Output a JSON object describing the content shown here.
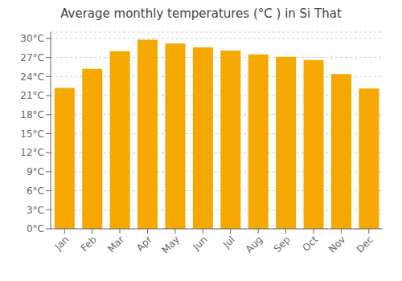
{
  "chart_data": {
    "type": "bar",
    "title": "Average monthly temperatures (°C ) in Si That",
    "categories": [
      "Jan",
      "Feb",
      "Mar",
      "Apr",
      "May",
      "Jun",
      "Jul",
      "Aug",
      "Sep",
      "Oct",
      "Nov",
      "Dec"
    ],
    "values": [
      22.2,
      25.2,
      28.0,
      29.8,
      29.2,
      28.6,
      28.1,
      27.5,
      27.1,
      26.6,
      24.4,
      22.1
    ],
    "color": "#F5A800",
    "ylim": [
      0,
      31
    ],
    "yticks": [
      {
        "value": 0,
        "label": "0°C"
      },
      {
        "value": 3,
        "label": "3°C"
      },
      {
        "value": 6,
        "label": "6°C"
      },
      {
        "value": 9,
        "label": "9°C"
      },
      {
        "value": 12,
        "label": "12°C"
      },
      {
        "value": 15,
        "label": "15°C"
      },
      {
        "value": 18,
        "label": "18°C"
      },
      {
        "value": 21,
        "label": "21°C"
      },
      {
        "value": 24,
        "label": "24°C"
      },
      {
        "value": 27,
        "label": "27°C"
      },
      {
        "value": 30,
        "label": "30°C"
      }
    ],
    "grid": true
  }
}
